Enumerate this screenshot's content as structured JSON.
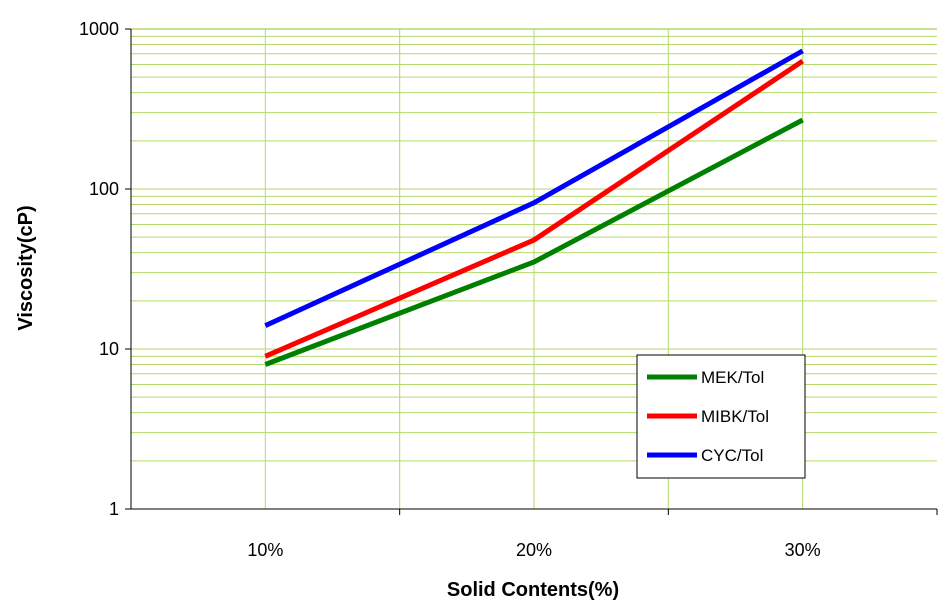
{
  "chart_data": {
    "type": "line",
    "title": "",
    "xlabel": "Solid Contents(%)",
    "ylabel": "Viscosity(cP)",
    "y_scale": "log",
    "ylim": [
      1,
      1000
    ],
    "y_ticks": [
      "1",
      "10",
      "100",
      "1000"
    ],
    "categories": [
      "10%",
      "20%",
      "30%"
    ],
    "grid": true,
    "legend_position": "bottom-right",
    "grid_color": "#b5d96a",
    "series": [
      {
        "name": "MEK/Tol",
        "color": "#008000",
        "values": [
          8,
          35,
          270
        ]
      },
      {
        "name": "MIBK/Tol",
        "color": "#ff0000",
        "values": [
          9,
          48,
          630
        ]
      },
      {
        "name": "CYC/Tol",
        "color": "#0000ff",
        "values": [
          14,
          82,
          730
        ]
      }
    ]
  }
}
